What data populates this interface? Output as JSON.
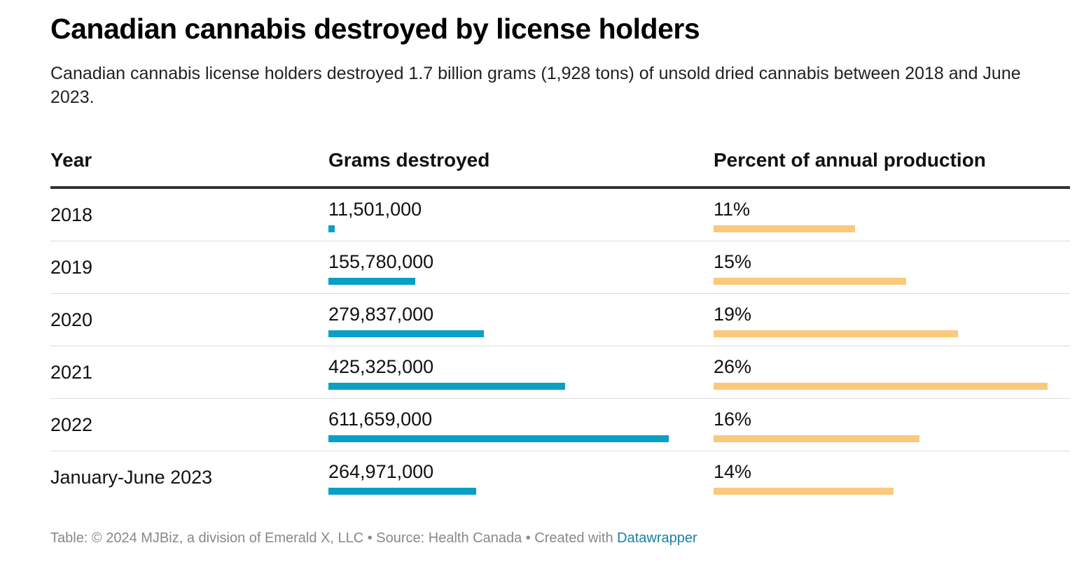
{
  "title": "Canadian cannabis destroyed by license holders",
  "subtitle": "Canadian cannabis license holders destroyed 1.7 billion grams (1,928 tons) of unsold dried cannabis between 2018 and June 2023.",
  "footer": {
    "text": "Table: © 2024 MJBiz, a division of Emerald X, LLC • Source: Health Canada • Created with",
    "link": "Datawrapper"
  },
  "colors": {
    "grams_bar": "#0aa0c6",
    "percent_bar": "#fbc97c",
    "link": "#1a7fa6"
  },
  "chart_data": {
    "type": "table",
    "columns": [
      "Year",
      "Grams destroyed",
      "Percent of annual production"
    ],
    "rows": [
      {
        "year": "2018",
        "grams_label": "11,501,000",
        "grams": 11501000,
        "pct_label": "11%",
        "pct": 11
      },
      {
        "year": "2019",
        "grams_label": "155,780,000",
        "grams": 155780000,
        "pct_label": "15%",
        "pct": 15
      },
      {
        "year": "2020",
        "grams_label": "279,837,000",
        "grams": 279837000,
        "pct_label": "19%",
        "pct": 19
      },
      {
        "year": "2021",
        "grams_label": "425,325,000",
        "grams": 425325000,
        "pct_label": "26%",
        "pct": 26
      },
      {
        "year": "2022",
        "grams_label": "611,659,000",
        "grams": 611659000,
        "pct_label": "16%",
        "pct": 16
      },
      {
        "year": "January-June 2023",
        "grams_label": "264,971,000",
        "grams": 264971000,
        "pct_label": "14%",
        "pct": 14
      }
    ]
  }
}
